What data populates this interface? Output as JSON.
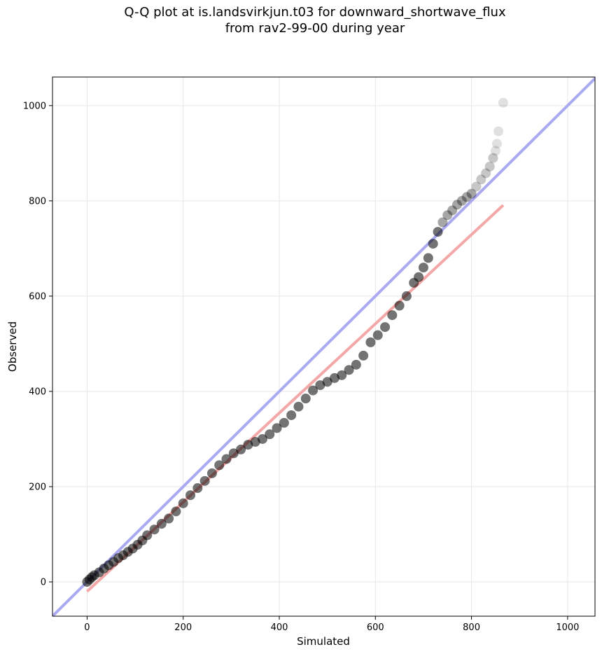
{
  "chart_data": {
    "type": "scatter",
    "title_line1": "Q-Q plot at is.landsvirkjun.t03 for downward_shortwave_flux",
    "title_line2": "from rav2-99-00 during year",
    "xlabel": "Simulated",
    "ylabel": "Observed",
    "xlim": [
      -72,
      1057
    ],
    "ylim": [
      -72,
      1060
    ],
    "xticks": [
      0,
      200,
      400,
      600,
      800,
      1000
    ],
    "yticks": [
      0,
      200,
      400,
      600,
      800,
      1000
    ],
    "grid": true,
    "points": [
      [
        0,
        0
      ],
      [
        5,
        5
      ],
      [
        10,
        10
      ],
      [
        15,
        14
      ],
      [
        25,
        20
      ],
      [
        35,
        28
      ],
      [
        45,
        35
      ],
      [
        55,
        42
      ],
      [
        65,
        50
      ],
      [
        75,
        56
      ],
      [
        85,
        63
      ],
      [
        95,
        70
      ],
      [
        105,
        78
      ],
      [
        115,
        87
      ],
      [
        125,
        98
      ],
      [
        140,
        110
      ],
      [
        155,
        122
      ],
      [
        170,
        133
      ],
      [
        185,
        148
      ],
      [
        200,
        165
      ],
      [
        215,
        182
      ],
      [
        230,
        197
      ],
      [
        245,
        212
      ],
      [
        260,
        228
      ],
      [
        275,
        245
      ],
      [
        290,
        258
      ],
      [
        305,
        270
      ],
      [
        320,
        278
      ],
      [
        335,
        288
      ],
      [
        350,
        294
      ],
      [
        365,
        300
      ],
      [
        380,
        310
      ],
      [
        395,
        323
      ],
      [
        410,
        334
      ],
      [
        425,
        350
      ],
      [
        440,
        368
      ],
      [
        455,
        385
      ],
      [
        470,
        402
      ],
      [
        485,
        413
      ],
      [
        500,
        420
      ],
      [
        515,
        428
      ],
      [
        530,
        434
      ],
      [
        545,
        445
      ],
      [
        560,
        456
      ],
      [
        575,
        475
      ],
      [
        590,
        503
      ],
      [
        605,
        518
      ],
      [
        620,
        535
      ],
      [
        635,
        560
      ],
      [
        650,
        580
      ],
      [
        665,
        600
      ],
      [
        680,
        628
      ],
      [
        690,
        640
      ],
      [
        700,
        660
      ],
      [
        710,
        680
      ],
      [
        720,
        710
      ],
      [
        730,
        735
      ],
      [
        740,
        755
      ],
      [
        750,
        770
      ],
      [
        760,
        780
      ],
      [
        770,
        792
      ],
      [
        780,
        800
      ],
      [
        790,
        808
      ],
      [
        800,
        815
      ],
      [
        810,
        830
      ],
      [
        820,
        845
      ],
      [
        830,
        858
      ],
      [
        838,
        872
      ],
      [
        845,
        890
      ],
      [
        850,
        905
      ],
      [
        853,
        920
      ],
      [
        856,
        946
      ],
      [
        866,
        1006
      ]
    ],
    "reference_line": {
      "color": "#aaaaf2",
      "from": [
        -72,
        -72
      ],
      "to": [
        1057,
        1057
      ]
    },
    "fit_line": {
      "color": "#f4a7a7",
      "from": [
        0,
        -20
      ],
      "to": [
        866,
        791
      ]
    }
  }
}
